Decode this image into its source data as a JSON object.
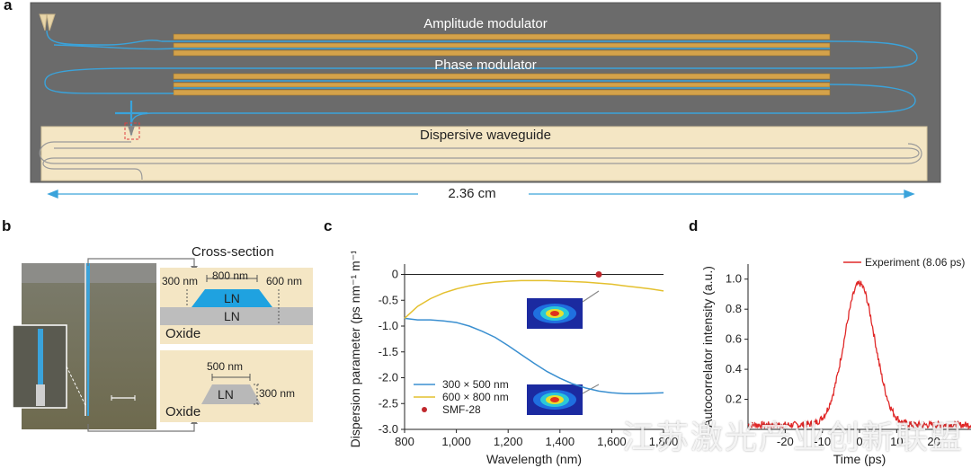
{
  "panel_a": {
    "label": "a",
    "amplitude_modulator": "Amplitude modulator",
    "phase_modulator": "Phase modulator",
    "dispersive_waveguide": "Dispersive waveguide",
    "length": "2.36 cm",
    "colors": {
      "chip": "#6b6b6b",
      "electrode": "#d4a24a",
      "waveguide": "#3aa3db",
      "dispersive_bg": "#f4e6c4"
    }
  },
  "panel_b": {
    "label": "b",
    "cross_section_title": "Cross-section",
    "top": {
      "width_top": "800 nm",
      "height_left": "300 nm",
      "height_right": "600 nm",
      "core": "LN",
      "slab": "LN",
      "substrate": "Oxide"
    },
    "bottom": {
      "width_top": "500 nm",
      "height": "300 nm",
      "core": "LN",
      "substrate": "Oxide"
    }
  },
  "chart_data": [
    {
      "panel": "c",
      "type": "line",
      "title": "",
      "xlabel": "Wavelength (nm)",
      "ylabel": "Dispersion parameter (ps nm⁻¹ m⁻¹)",
      "xlim": [
        800,
        1800
      ],
      "ylim": [
        -3.0,
        0.2
      ],
      "xticks": [
        "800",
        "1,000",
        "1,200",
        "1,400",
        "1,600",
        "1,800"
      ],
      "yticks": [
        "0",
        "-0.5",
        "-1.0",
        "-1.5",
        "-2.0",
        "-2.5",
        "-3.0"
      ],
      "series": [
        {
          "name": "300 × 500 nm",
          "color": "#3a8fd0",
          "x": [
            800,
            850,
            900,
            950,
            1000,
            1050,
            1100,
            1150,
            1200,
            1250,
            1300,
            1350,
            1400,
            1450,
            1500,
            1550,
            1600,
            1650,
            1700,
            1750,
            1800
          ],
          "y": [
            -0.85,
            -0.88,
            -0.88,
            -0.9,
            -0.93,
            -1.0,
            -1.1,
            -1.22,
            -1.38,
            -1.55,
            -1.72,
            -1.88,
            -2.01,
            -2.12,
            -2.2,
            -2.26,
            -2.29,
            -2.31,
            -2.31,
            -2.3,
            -2.29
          ]
        },
        {
          "name": "600 × 800 nm",
          "color": "#e4c02e",
          "x": [
            800,
            850,
            900,
            950,
            1000,
            1050,
            1100,
            1150,
            1200,
            1250,
            1300,
            1350,
            1400,
            1450,
            1500,
            1550,
            1600,
            1650,
            1700,
            1750,
            1800
          ],
          "y": [
            -0.85,
            -0.62,
            -0.47,
            -0.36,
            -0.28,
            -0.22,
            -0.18,
            -0.15,
            -0.13,
            -0.12,
            -0.12,
            -0.12,
            -0.13,
            -0.14,
            -0.15,
            -0.17,
            -0.19,
            -0.22,
            -0.25,
            -0.28,
            -0.32
          ]
        },
        {
          "name": "SMF-28",
          "color": "#c0282d",
          "x": [
            1550
          ],
          "y": [
            0.0
          ]
        }
      ],
      "legend": "bottom-left"
    },
    {
      "panel": "d",
      "type": "line",
      "title": "",
      "xlabel": "Time (ps)",
      "ylabel": "Autocorrelator intensity (a.u.)",
      "xlim": [
        -30,
        30
      ],
      "ylim": [
        0,
        1.1
      ],
      "xticks": [
        "-20",
        "-10",
        "0",
        "10",
        "20"
      ],
      "yticks": [
        "0.2",
        "0.4",
        "0.6",
        "0.8",
        "1.0"
      ],
      "series": [
        {
          "name": "Experiment (8.06 ps)",
          "color": "#e02828",
          "fwhm_ps": 8.06,
          "peak": 0.97,
          "baseline": 0.03
        }
      ],
      "legend": "top-right"
    }
  ],
  "panel_c": {
    "label": "c"
  },
  "panel_d": {
    "label": "d"
  },
  "watermark": "江苏激光产业创新联盟"
}
